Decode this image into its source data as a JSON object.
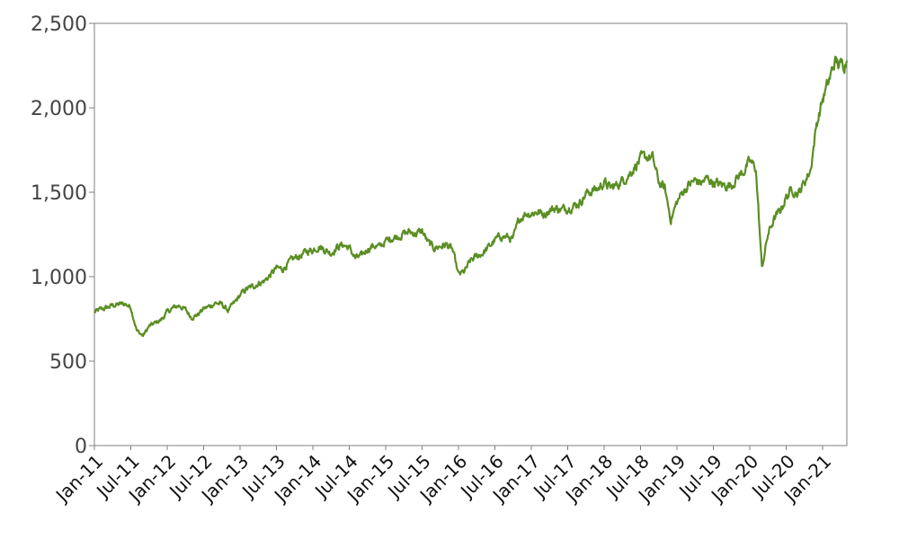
{
  "chart_data": {
    "type": "line",
    "title": "",
    "xlabel": "",
    "ylabel": "",
    "ylim": [
      0,
      2500
    ],
    "y_ticks": [
      0,
      500,
      1000,
      1500,
      2000,
      2500
    ],
    "y_tick_labels": [
      "0",
      "500",
      "1,000",
      "1,500",
      "2,000",
      "2,500"
    ],
    "x_range": [
      "2011-01",
      "2021-05"
    ],
    "x_ticks": [
      "2011-01",
      "2011-07",
      "2012-01",
      "2012-07",
      "2013-01",
      "2013-07",
      "2014-01",
      "2014-07",
      "2015-01",
      "2015-07",
      "2016-01",
      "2016-07",
      "2017-01",
      "2017-07",
      "2018-01",
      "2018-07",
      "2019-01",
      "2019-07",
      "2020-01",
      "2020-07",
      "2021-01"
    ],
    "x_tick_labels": [
      "Jan-11",
      "Jul-11",
      "Jan-12",
      "Jul-12",
      "Jan-13",
      "Jul-13",
      "Jan-14",
      "Jul-14",
      "Jan-15",
      "Jul-15",
      "Jan-16",
      "Jul-16",
      "Jan-17",
      "Jul-17",
      "Jan-18",
      "Jul-18",
      "Jan-19",
      "Jul-19",
      "Jan-20",
      "Jul-20",
      "Jan-21"
    ],
    "grid": false,
    "legend": "none",
    "series": [
      {
        "color": "#5a8e23",
        "x": [
          "2011-01",
          "2011-02",
          "2011-03",
          "2011-04",
          "2011-05",
          "2011-06",
          "2011-07",
          "2011-08",
          "2011-09",
          "2011-10",
          "2011-11",
          "2011-12",
          "2012-01",
          "2012-02",
          "2012-03",
          "2012-04",
          "2012-05",
          "2012-06",
          "2012-07",
          "2012-08",
          "2012-09",
          "2012-10",
          "2012-11",
          "2012-12",
          "2013-01",
          "2013-02",
          "2013-03",
          "2013-04",
          "2013-05",
          "2013-06",
          "2013-07",
          "2013-08",
          "2013-09",
          "2013-10",
          "2013-11",
          "2013-12",
          "2014-01",
          "2014-02",
          "2014-03",
          "2014-04",
          "2014-05",
          "2014-06",
          "2014-07",
          "2014-08",
          "2014-09",
          "2014-10",
          "2014-11",
          "2014-12",
          "2015-01",
          "2015-02",
          "2015-03",
          "2015-04",
          "2015-05",
          "2015-06",
          "2015-07",
          "2015-08",
          "2015-09",
          "2015-10",
          "2015-11",
          "2015-12",
          "2016-01",
          "2016-02",
          "2016-03",
          "2016-04",
          "2016-05",
          "2016-06",
          "2016-07",
          "2016-08",
          "2016-09",
          "2016-10",
          "2016-11",
          "2016-12",
          "2017-01",
          "2017-02",
          "2017-03",
          "2017-04",
          "2017-05",
          "2017-06",
          "2017-07",
          "2017-08",
          "2017-09",
          "2017-10",
          "2017-11",
          "2017-12",
          "2018-01",
          "2018-02",
          "2018-03",
          "2018-04",
          "2018-05",
          "2018-06",
          "2018-07",
          "2018-08",
          "2018-09",
          "2018-10",
          "2018-11",
          "2018-12",
          "2019-01",
          "2019-02",
          "2019-03",
          "2019-04",
          "2019-05",
          "2019-06",
          "2019-07",
          "2019-08",
          "2019-09",
          "2019-10",
          "2019-11",
          "2019-12",
          "2020-01",
          "2020-02",
          "2020-03",
          "2020-04",
          "2020-05",
          "2020-06",
          "2020-07",
          "2020-08",
          "2020-09",
          "2020-10",
          "2020-11",
          "2020-12",
          "2021-01",
          "2021-02",
          "2021-03",
          "2021-04",
          "2021-05"
        ],
        "values": [
          790,
          805,
          815,
          830,
          835,
          840,
          820,
          680,
          650,
          705,
          725,
          745,
          790,
          815,
          830,
          805,
          760,
          775,
          810,
          825,
          845,
          835,
          800,
          840,
          890,
          925,
          940,
          960,
          975,
          1010,
          1050,
          1045,
          1080,
          1110,
          1125,
          1150,
          1160,
          1180,
          1160,
          1140,
          1175,
          1190,
          1170,
          1110,
          1120,
          1165,
          1185,
          1175,
          1210,
          1230,
          1240,
          1255,
          1265,
          1255,
          1270,
          1200,
          1170,
          1180,
          1190,
          1160,
          1010,
          1030,
          1095,
          1120,
          1140,
          1175,
          1215,
          1240,
          1235,
          1220,
          1340,
          1375,
          1375,
          1385,
          1370,
          1395,
          1405,
          1395,
          1410,
          1420,
          1440,
          1490,
          1510,
          1520,
          1560,
          1525,
          1540,
          1570,
          1600,
          1650,
          1695,
          1710,
          1700,
          1560,
          1520,
          1340,
          1440,
          1505,
          1545,
          1570,
          1555,
          1580,
          1560,
          1545,
          1540,
          1545,
          1590,
          1625,
          1680,
          1645,
          1050,
          1250,
          1340,
          1390,
          1470,
          1520,
          1490,
          1560,
          1630,
          1900,
          2050,
          2150,
          2275,
          2250,
          2280
        ]
      }
    ]
  }
}
